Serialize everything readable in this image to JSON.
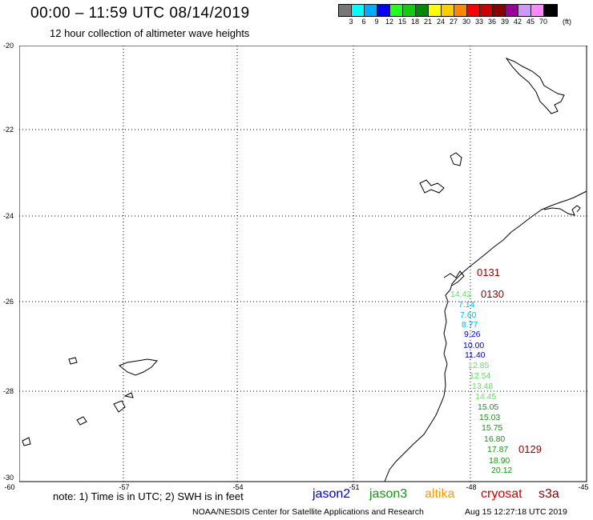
{
  "header": {
    "title": "00:00 – 11:59 UTC 08/14/2019",
    "subtitle": "12 hour collection of altimeter wave heights"
  },
  "colorbar": {
    "colors": [
      "#777777",
      "#00ffff",
      "#00aaff",
      "#0000ff",
      "#22ff22",
      "#11cc11",
      "#008800",
      "#ffff00",
      "#ffcc00",
      "#ff8800",
      "#ff0000",
      "#cc0000",
      "#880000",
      "#990099",
      "#cc99ff",
      "#ff88ff",
      "#000000"
    ],
    "labels": [
      "3",
      "6",
      "9",
      "12",
      "15",
      "18",
      "21",
      "24",
      "27",
      "30",
      "33",
      "36",
      "39",
      "42",
      "45",
      "70"
    ],
    "unit": "(ft)"
  },
  "axes": {
    "lat_labels": [
      "-20",
      "-22",
      "-24",
      "-26",
      "-28",
      "-30"
    ],
    "lon_labels": [
      "-60",
      "-57",
      "-54",
      "-51",
      "-48",
      "-45"
    ]
  },
  "wave_heights": [
    {
      "value": "14.42",
      "color": "#66dd66"
    },
    {
      "value": "7.14",
      "color": "#00bbee"
    },
    {
      "value": "7.60",
      "color": "#00bbee"
    },
    {
      "value": "8.77",
      "color": "#00bbee"
    },
    {
      "value": "9.26",
      "color": "#0000dd"
    },
    {
      "value": "10.00",
      "color": "#0000dd"
    },
    {
      "value": "11.40",
      "color": "#0000dd"
    },
    {
      "value": "12.85",
      "color": "#66dd66"
    },
    {
      "value": "12.54",
      "color": "#66dd66"
    },
    {
      "value": "13.48",
      "color": "#66dd66"
    },
    {
      "value": "14.45",
      "color": "#66dd66"
    },
    {
      "value": "15.05",
      "color": "#119911"
    },
    {
      "value": "15.03",
      "color": "#119911"
    },
    {
      "value": "15.75",
      "color": "#119911"
    },
    {
      "value": "16.80",
      "color": "#119911"
    },
    {
      "value": "17.87",
      "color": "#119911"
    },
    {
      "value": "18.90",
      "color": "#119911"
    },
    {
      "value": "20.12",
      "color": "#119911"
    }
  ],
  "pass_labels": [
    "0131",
    "0130",
    "0129"
  ],
  "footer": {
    "note": "note: 1) Time is in UTC; 2) SWH is in feet",
    "legend": [
      {
        "name": "jason2",
        "color": "#0000cc"
      },
      {
        "name": "jason3",
        "color": "#119911"
      },
      {
        "name": "altika",
        "color": "#ff9900"
      },
      {
        "name": "cryosat",
        "color": "#cc0000"
      },
      {
        "name": "s3a",
        "color": "#880000"
      }
    ],
    "credit": "NOAA/NESDIS Center for Satellite Applications and Research",
    "timestamp": "Aug 15 12:27:18 UTC 2019"
  }
}
